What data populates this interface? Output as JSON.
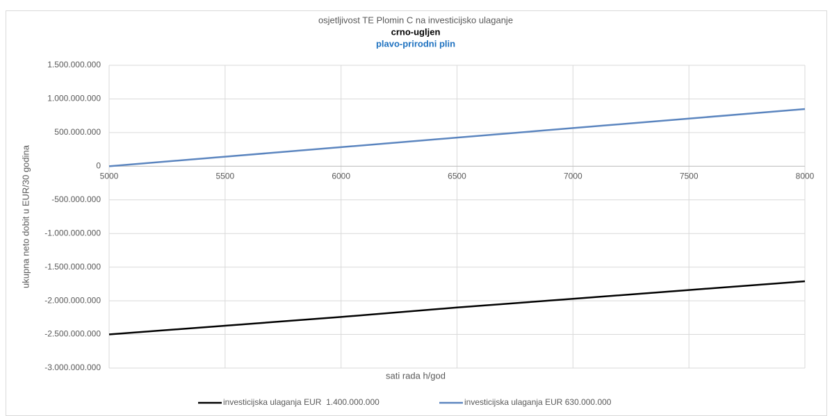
{
  "chart_data": {
    "type": "line",
    "title": "osjetljivost TE Plomin C na investicijsko ulaganje",
    "subtitle": [
      "crno-ugljen",
      "plavo-prirodni plin"
    ],
    "xlabel": "sati rada h/god",
    "ylabel": "ukupna neto dobit u EUR/30 godina",
    "x": [
      5000,
      5500,
      6000,
      6500,
      7000,
      7500,
      8000
    ],
    "series": [
      {
        "name": "investicijska ulaganja EUR  1.400.000.000",
        "color": "#000000",
        "values": [
          -2500000000,
          -2370000000,
          -2240000000,
          -2100000000,
          -1970000000,
          -1840000000,
          -1710000000
        ]
      },
      {
        "name": "investicijska ulaganja EUR 630.000.000",
        "color": "#5b85bf",
        "values": [
          0,
          142000000,
          283000000,
          425000000,
          567000000,
          708000000,
          850000000
        ]
      }
    ],
    "xlim": [
      5000,
      8000
    ],
    "xticks": [
      5000,
      5500,
      6000,
      6500,
      7000,
      7500,
      8000
    ],
    "ylim": [
      -3000000000,
      1500000000
    ],
    "yticks": [
      {
        "value": -3000000000,
        "label": "-3.000.000.000"
      },
      {
        "value": -2500000000,
        "label": "-2.500.000.000"
      },
      {
        "value": -2000000000,
        "label": "-2.000.000.000"
      },
      {
        "value": -1500000000,
        "label": "-1.500.000.000"
      },
      {
        "value": -1000000000,
        "label": "-1.000.000.000"
      },
      {
        "value": -500000000,
        "label": "-500.000.000"
      },
      0,
      {
        "value": 500000000,
        "label": "500.000.000"
      },
      {
        "value": 1000000000,
        "label": "1.000.000.000"
      },
      {
        "value": 1500000000,
        "label": "1.500.000.000"
      }
    ],
    "grid": true,
    "legend": "bottom"
  }
}
